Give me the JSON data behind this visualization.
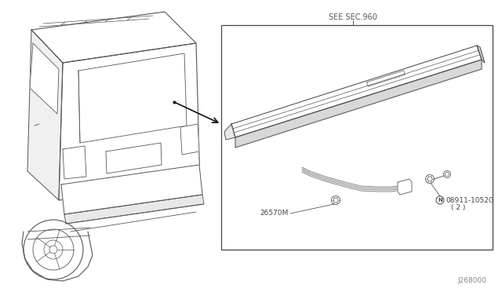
{
  "background_color": "#ffffff",
  "see_sec_label": "SEE SEC.960",
  "part_label_1": "26570M",
  "part_label_2": "08911-1052G",
  "part_label_2b": "( 2 )",
  "bottom_code": "J268000",
  "line_color": "#555555",
  "box_color": "#444444"
}
